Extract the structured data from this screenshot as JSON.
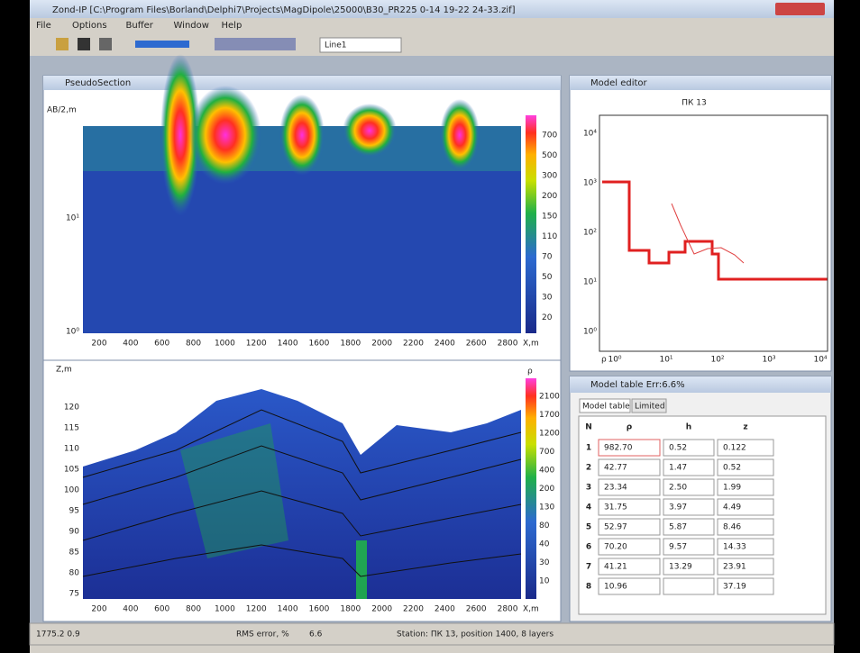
{
  "window": {
    "title": "Zond-IP [C:\\Program Files\\Borland\\Delphi7\\Projects\\MagDipole\\25000\\B30_PR225 0-14 19-22 24-33.zif]",
    "menu": [
      "File",
      "Options",
      "Buffer",
      "Window",
      "Help"
    ],
    "combo": "Line1"
  },
  "pseudosection": {
    "title": "PseudoSection",
    "y_label": "AB/2,m",
    "x_label": "X,m",
    "x_ticks": [
      "200",
      "400",
      "600",
      "800",
      "1000",
      "1200",
      "1400",
      "1600",
      "1800",
      "2000",
      "2200",
      "2400",
      "2600",
      "2800"
    ],
    "y_ticks": [
      "10¹",
      "10⁰"
    ],
    "colorbar": [
      "700",
      "500",
      "300",
      "200",
      "150",
      "110",
      "70",
      "50",
      "30",
      "20"
    ]
  },
  "section": {
    "y_label": "Z,m",
    "x_label": "X,m",
    "colorbar_label": "ρ",
    "x_ticks": [
      "200",
      "400",
      "600",
      "800",
      "1000",
      "1200",
      "1400",
      "1600",
      "1800",
      "2000",
      "2200",
      "2400",
      "2600",
      "2800"
    ],
    "y_ticks": [
      "120",
      "115",
      "110",
      "105",
      "100",
      "95",
      "90",
      "85",
      "80",
      "75"
    ],
    "colorbar": [
      "2100",
      "1700",
      "1200",
      "700",
      "400",
      "200",
      "130",
      "80",
      "40",
      "30",
      "10"
    ]
  },
  "model_editor": {
    "title": "Model editor",
    "station": "ПК 13",
    "y_ticks": [
      "10⁴",
      "10³",
      "10²",
      "10¹",
      "10⁰"
    ],
    "x_label": "ρ",
    "x_ticks": [
      "10⁰",
      "10¹",
      "10²",
      "10³",
      "10⁴"
    ]
  },
  "model_table": {
    "title": "Model table Err:6.6%",
    "tabs": [
      "Model table",
      "Limited"
    ],
    "headers": [
      "N",
      "ρ",
      "h",
      "z"
    ],
    "rows": [
      [
        "1",
        "982.70",
        "0.52",
        "0.122"
      ],
      [
        "2",
        "42.77",
        "1.47",
        "0.52"
      ],
      [
        "3",
        "23.34",
        "2.50",
        "1.99"
      ],
      [
        "4",
        "31.75",
        "3.97",
        "4.49"
      ],
      [
        "5",
        "52.97",
        "5.87",
        "8.46"
      ],
      [
        "6",
        "70.20",
        "9.57",
        "14.33"
      ],
      [
        "7",
        "41.21",
        "13.29",
        "23.91"
      ],
      [
        "8",
        "10.96",
        null,
        "37.19"
      ]
    ]
  },
  "status": [
    "1775.2 0.9",
    "RMS error, %",
    "6.6",
    "Station: ПК 13, position 1400, 8 layers"
  ]
}
